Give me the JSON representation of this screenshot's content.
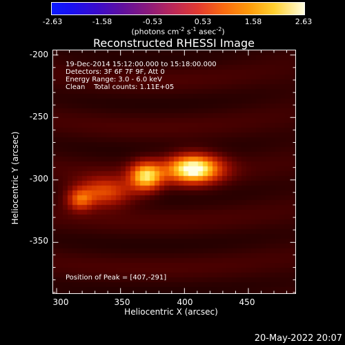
{
  "colorbar": {
    "ticks": [
      "-2.63",
      "-1.58",
      "-0.53",
      "0.53",
      "1.58",
      "2.63"
    ],
    "unit_prefix": "(photons cm",
    "unit_sup1": "-2",
    "unit_mid1": " s",
    "unit_sup2": "-1",
    "unit_mid2": " asec",
    "unit_sup3": "-2",
    "unit_suffix": ")"
  },
  "annotations": {
    "line1": "19-Dec-2014 15:12:00.000 to 15:18:00.000",
    "line2": "Detectors: 3F 6F 7F 9F, Att 0",
    "line3": "Energy Range: 3.0 - 6.0 keV",
    "line4": "Clean    Total counts: 1.11E+05",
    "peak": "Position of Peak = [407,-291]"
  },
  "footer_date": "20-May-2022 20:07",
  "chart_data": {
    "type": "heatmap",
    "title": "Reconstructed RHESSI Image",
    "xlabel": "Heliocentric X (arcsec)",
    "ylabel": "Heliocentric Y (arcsec)",
    "xlim": [
      297,
      487
    ],
    "ylim": [
      -391,
      -196
    ],
    "x_ticks": [
      300,
      350,
      400,
      450
    ],
    "y_ticks": [
      -200,
      -250,
      -300,
      -350
    ],
    "colorbar_range": [
      -2.63,
      2.63
    ],
    "peak": [
      407,
      -291
    ],
    "sources": [
      {
        "x": 407,
        "y": -291,
        "amp": 1.0,
        "sx": 15,
        "sy": 8
      },
      {
        "x": 370,
        "y": -297,
        "amp": 0.78,
        "sx": 9,
        "sy": 8
      },
      {
        "x": 337,
        "y": -310,
        "amp": 0.5,
        "sx": 16,
        "sy": 8
      },
      {
        "x": 318,
        "y": -316,
        "amp": 0.42,
        "sx": 7,
        "sy": 6
      }
    ]
  }
}
